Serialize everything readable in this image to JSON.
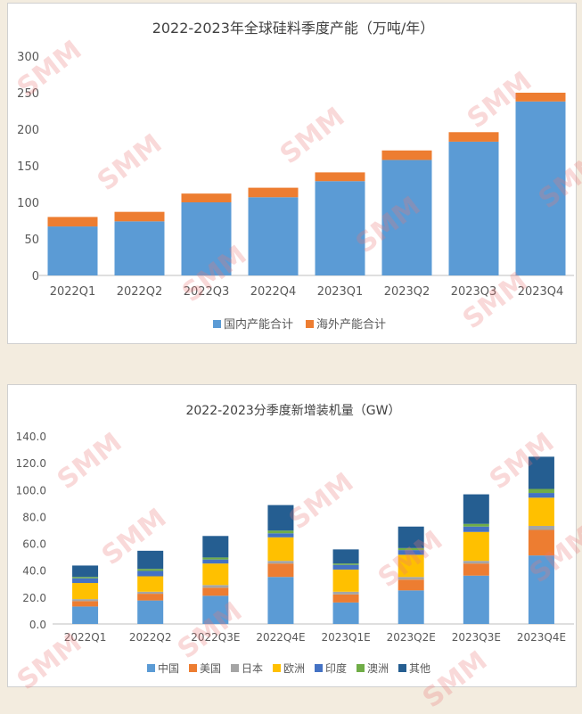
{
  "chart_data": [
    {
      "type": "bar",
      "stacked": true,
      "title": "2022-2023年全球硅料季度产能（万吨/年）",
      "categories": [
        "2022Q1",
        "2022Q2",
        "2022Q3",
        "2022Q4",
        "2023Q1",
        "2023Q2",
        "2023Q3",
        "2023Q4"
      ],
      "series": [
        {
          "name": "国内产能合计",
          "color": "#5b9bd5",
          "values": [
            67,
            74,
            100,
            107,
            129,
            158,
            183,
            238
          ]
        },
        {
          "name": "海外产能合计",
          "color": "#ed7d31",
          "values": [
            13,
            13,
            12,
            13,
            12,
            13,
            13,
            12
          ]
        }
      ],
      "ylim": [
        0,
        300
      ],
      "yticks": [
        "0",
        "50",
        "100",
        "150",
        "200",
        "250",
        "300"
      ],
      "grid": false,
      "legend": "bottom"
    },
    {
      "type": "bar",
      "stacked": true,
      "title": "2022-2023分季度新增装机量（GW）",
      "categories": [
        "2022Q1",
        "2022Q2",
        "2022Q3E",
        "2022Q4E",
        "2023Q1E",
        "2023Q2E",
        "2023Q3E",
        "2023Q4E"
      ],
      "series": [
        {
          "name": "中国",
          "color": "#5b9bd5",
          "values": [
            13,
            17.5,
            21,
            35,
            16,
            25,
            36,
            51
          ]
        },
        {
          "name": "美国",
          "color": "#ed7d31",
          "values": [
            4,
            5,
            6,
            10,
            6,
            8,
            9,
            19
          ]
        },
        {
          "name": "日本",
          "color": "#a5a5a5",
          "values": [
            1.5,
            1.5,
            2,
            2,
            2,
            2,
            2,
            3
          ]
        },
        {
          "name": "欧洲",
          "color": "#ffc000",
          "values": [
            12,
            11.5,
            16,
            17.5,
            16.5,
            16.5,
            21.5,
            21
          ]
        },
        {
          "name": "印度",
          "color": "#4472c4",
          "values": [
            3.5,
            4,
            3,
            3,
            3.5,
            3.5,
            4,
            3.5
          ]
        },
        {
          "name": "澳洲",
          "color": "#70ad47",
          "values": [
            1,
            1.5,
            1.5,
            2,
            1,
            1.5,
            2,
            3
          ]
        },
        {
          "name": "其他",
          "color": "#255e91",
          "values": [
            8.5,
            13.5,
            16,
            19,
            10.5,
            16,
            22,
            24
          ]
        }
      ],
      "ylim": [
        0,
        140
      ],
      "yticks": [
        "0.0",
        "20.0",
        "40.0",
        "60.0",
        "80.0",
        "100.0",
        "120.0",
        "140.0"
      ],
      "grid": false,
      "legend": "bottom"
    }
  ],
  "watermark": {
    "text": "SMM"
  }
}
